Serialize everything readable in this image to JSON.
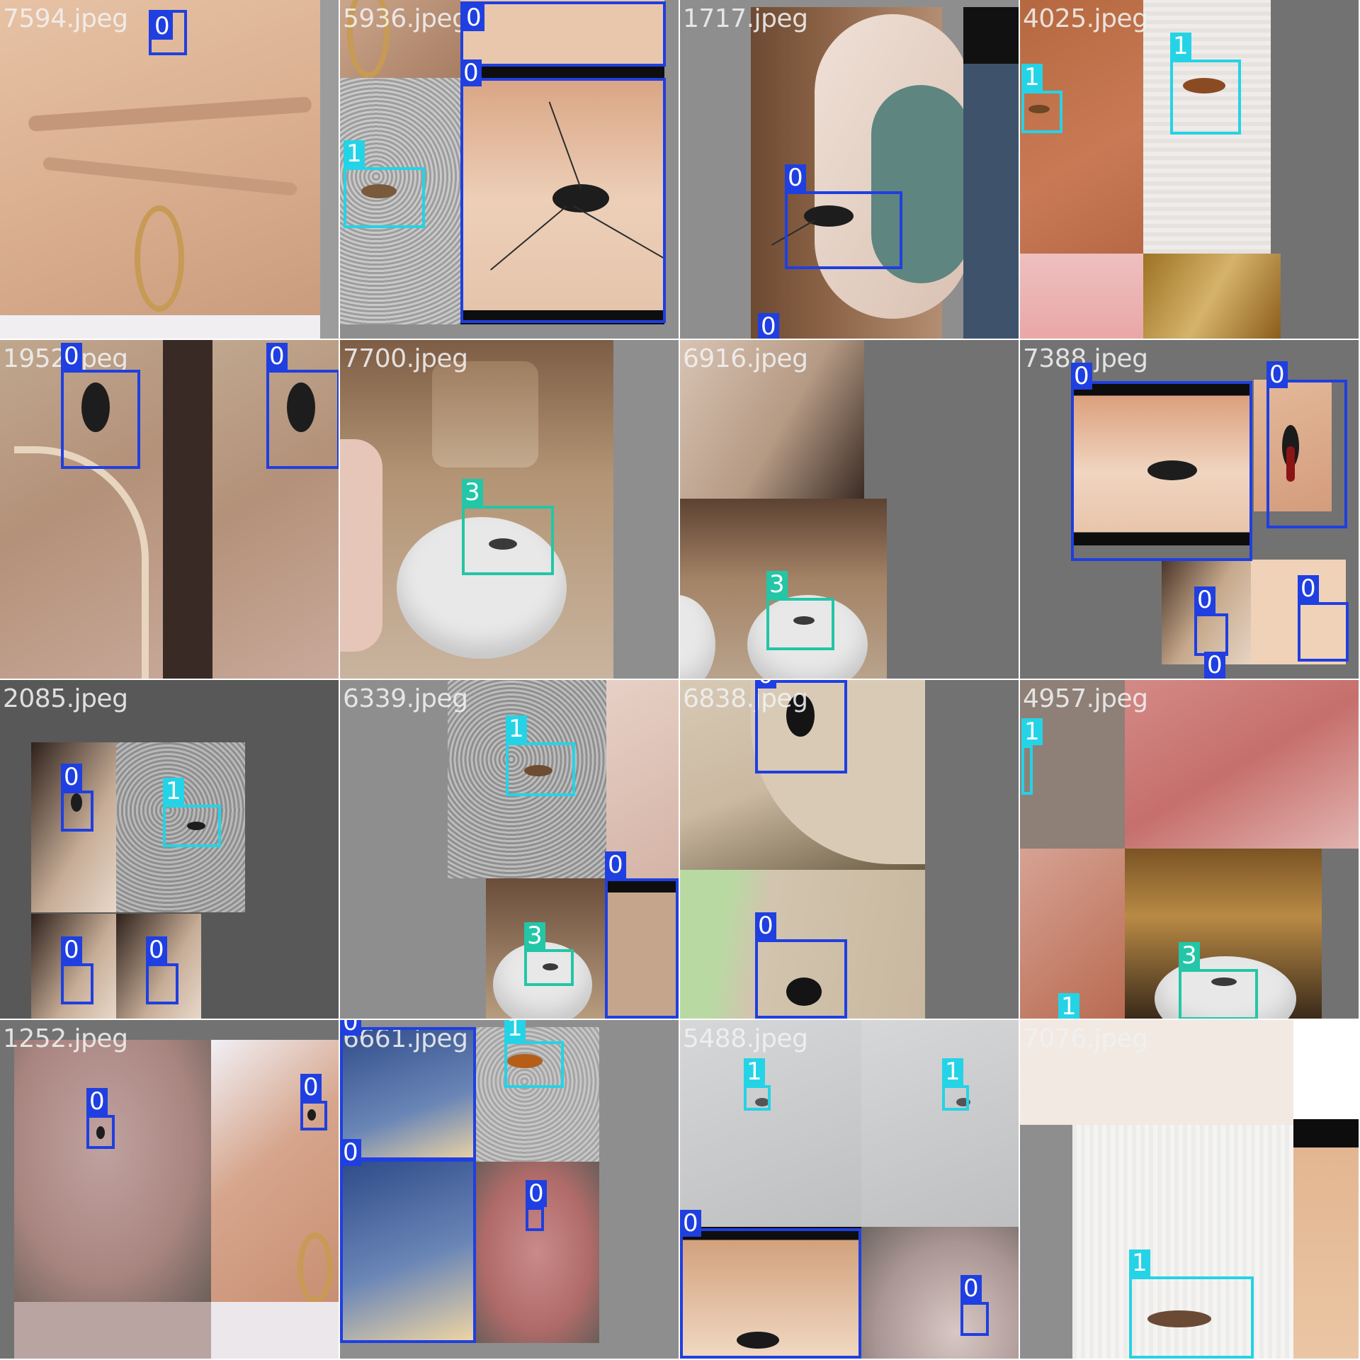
{
  "mosaic": {
    "colors": {
      "class_0": "#1f3fe0",
      "class_1": "#25d3e6",
      "class_3": "#23c6a6",
      "filename_text": "#f2f2f2",
      "padding_gray": "#727272"
    },
    "tiles": [
      {
        "filename": "7594.jpeg",
        "labels": [
          "0"
        ]
      },
      {
        "filename": "5936.jpeg",
        "labels": [
          "0",
          "0",
          "1"
        ]
      },
      {
        "filename": "1717.jpeg",
        "labels": [
          "0",
          "0"
        ]
      },
      {
        "filename": "4025.jpeg",
        "labels": [
          "1",
          "1"
        ]
      },
      {
        "filename": "1952.jpeg",
        "labels": [
          "0",
          "0"
        ]
      },
      {
        "filename": "7700.jpeg",
        "labels": [
          "3"
        ]
      },
      {
        "filename": "6916.jpeg",
        "labels": [
          "3"
        ]
      },
      {
        "filename": "7388.jpeg",
        "labels": [
          "0",
          "0",
          "0",
          "0",
          "0"
        ]
      },
      {
        "filename": "2085.jpeg",
        "labels": [
          "0",
          "1",
          "0",
          "0"
        ]
      },
      {
        "filename": "6339.jpeg",
        "labels": [
          "1",
          "0",
          "3"
        ]
      },
      {
        "filename": "6838.jpeg",
        "labels": [
          "0",
          "0"
        ]
      },
      {
        "filename": "4957.jpeg",
        "labels": [
          "1",
          "3",
          "1"
        ]
      },
      {
        "filename": "1252.jpeg",
        "labels": [
          "0",
          "0"
        ]
      },
      {
        "filename": "6661.jpeg",
        "labels": [
          "0",
          "1",
          "0",
          "0"
        ]
      },
      {
        "filename": "5488.jpeg",
        "labels": [
          "1",
          "1",
          "0",
          "0"
        ]
      },
      {
        "filename": "7076.jpeg",
        "labels": [
          "1"
        ]
      }
    ]
  }
}
